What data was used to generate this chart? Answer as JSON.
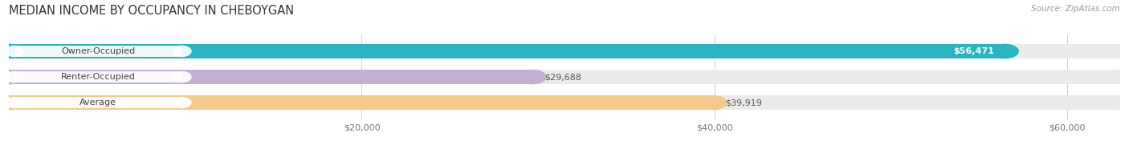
{
  "title": "MEDIAN INCOME BY OCCUPANCY IN CHEBOYGAN",
  "source": "Source: ZipAtlas.com",
  "categories": [
    "Owner-Occupied",
    "Renter-Occupied",
    "Average"
  ],
  "values": [
    56471,
    29688,
    39919
  ],
  "labels": [
    "$56,471",
    "$29,688",
    "$39,919"
  ],
  "label_inside": [
    true,
    false,
    false
  ],
  "bar_colors": [
    "#29b5bf",
    "#c4aed4",
    "#f5c98a"
  ],
  "track_color": "#ebebeb",
  "track_border_color": "#d8d8d8",
  "xmax": 63000,
  "xticks": [
    20000,
    40000,
    60000
  ],
  "xtick_labels": [
    "$20,000",
    "$40,000",
    "$60,000"
  ],
  "title_fontsize": 10.5,
  "source_fontsize": 7.5,
  "label_fontsize": 8,
  "cat_fontsize": 8,
  "background_color": "#ffffff"
}
